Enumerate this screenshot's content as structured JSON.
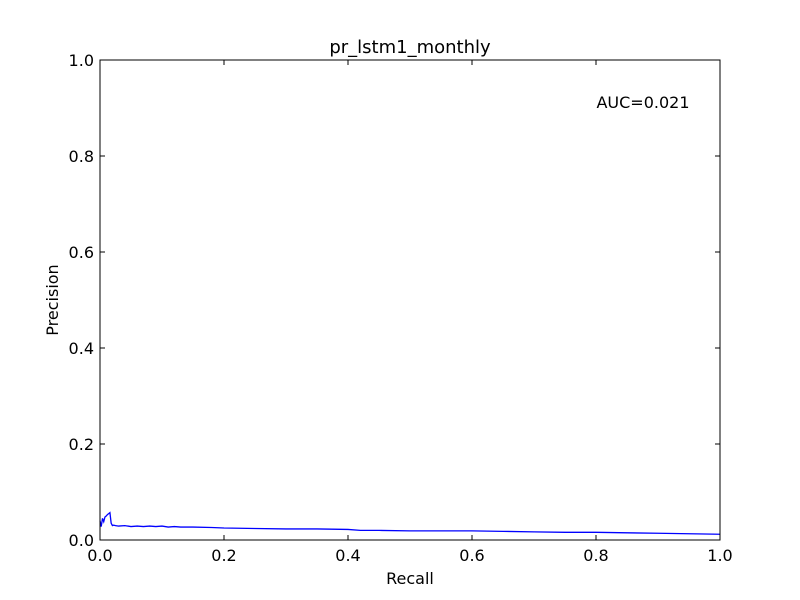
{
  "chart_data": {
    "type": "line",
    "title": "pr_lstm1_monthly",
    "xlabel": "Recall",
    "ylabel": "Precision",
    "xlim": [
      0.0,
      1.0
    ],
    "ylim": [
      0.0,
      1.0
    ],
    "xticks": [
      "0.0",
      "0.2",
      "0.4",
      "0.6",
      "0.8",
      "1.0"
    ],
    "yticks": [
      "0.0",
      "0.2",
      "0.4",
      "0.6",
      "0.8",
      "1.0"
    ],
    "grid": false,
    "annotation": "AUC=0.021",
    "series_color": "#0000ff",
    "series": [
      {
        "x": [
          0.0,
          0.002,
          0.004,
          0.006,
          0.008,
          0.01,
          0.012,
          0.014,
          0.016,
          0.018,
          0.02,
          0.022,
          0.025,
          0.03,
          0.04,
          0.05,
          0.06,
          0.07,
          0.08,
          0.09,
          0.1,
          0.11,
          0.12,
          0.13,
          0.15,
          0.18,
          0.2,
          0.25,
          0.3,
          0.35,
          0.4,
          0.42,
          0.45,
          0.5,
          0.55,
          0.6,
          0.65,
          0.7,
          0.75,
          0.8,
          0.85,
          0.9,
          0.95,
          1.0
        ],
        "y": [
          0.04,
          0.028,
          0.045,
          0.038,
          0.048,
          0.05,
          0.053,
          0.055,
          0.057,
          0.035,
          0.03,
          0.031,
          0.03,
          0.029,
          0.03,
          0.028,
          0.029,
          0.028,
          0.029,
          0.028,
          0.029,
          0.027,
          0.028,
          0.027,
          0.027,
          0.026,
          0.025,
          0.024,
          0.023,
          0.023,
          0.022,
          0.02,
          0.02,
          0.019,
          0.019,
          0.019,
          0.018,
          0.017,
          0.016,
          0.016,
          0.015,
          0.014,
          0.013,
          0.012
        ]
      }
    ]
  }
}
